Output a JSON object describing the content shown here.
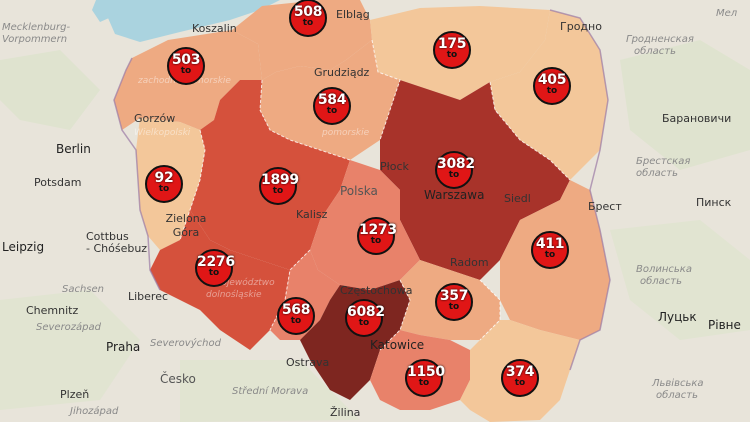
{
  "map": {
    "colors": {
      "background": "#e8e4da",
      "sea": "#aad3df",
      "low": "#f3c79a",
      "mid_low": "#eeaa82",
      "mid": "#e8826a",
      "high": "#d5513c",
      "very_high": "#a8332a",
      "highest": "#7e2620",
      "marker": "#e01616"
    },
    "markers": [
      {
        "id": "zachodniopomorskie",
        "value": "503",
        "sym": "to"
      },
      {
        "id": "pomorskie",
        "value": "508",
        "sym": "to"
      },
      {
        "id": "warminsko-mazurskie",
        "value": "175",
        "sym": "to"
      },
      {
        "id": "podlaskie",
        "value": "405",
        "sym": "to"
      },
      {
        "id": "kujawsko-pomorskie",
        "value": "584",
        "sym": "to"
      },
      {
        "id": "lubuskie",
        "value": "92",
        "sym": "to"
      },
      {
        "id": "wielkopolskie",
        "value": "1899",
        "sym": "to"
      },
      {
        "id": "mazowieckie",
        "value": "3082",
        "sym": "to"
      },
      {
        "id": "lodzkie",
        "value": "1273",
        "sym": "to"
      },
      {
        "id": "dolnoslaskie",
        "value": "2276",
        "sym": "to"
      },
      {
        "id": "lubelskie",
        "value": "411",
        "sym": "to"
      },
      {
        "id": "opolskie",
        "value": "568",
        "sym": "to"
      },
      {
        "id": "slaskie",
        "value": "6082",
        "sym": "to"
      },
      {
        "id": "swietokrzyskie",
        "value": "357",
        "sym": "to"
      },
      {
        "id": "malopolskie",
        "value": "1150",
        "sym": "to"
      },
      {
        "id": "podkarpackie",
        "value": "374",
        "sym": "to"
      }
    ],
    "cities": {
      "berlin": "Berlin",
      "potsdam": "Potsdam",
      "leipzig": "Leipzig",
      "chemnitz": "Chemnitz",
      "cottbus": "Cottbus",
      "chosebuz": "- Chóśebuz",
      "praha": "Praha",
      "plzen": "Plzeň",
      "ostrava": "Ostrava",
      "zilina": "Žilina",
      "koszalin": "Koszalin",
      "elblag": "Elbląg",
      "grudziadz": "Grudziądz",
      "gorzow": "Gorzów",
      "zielona_gora": "Zielona Góra",
      "kalisz": "Kalisz",
      "plock": "Płock",
      "warszawa": "Warszawa",
      "siedlce": "Siedl",
      "radom": "Radom",
      "katowice": "Katowice",
      "czestochowa": "Częstochowa",
      "liberec": "Liberec",
      "brest": "Брест",
      "pinsk": "Пинск",
      "baranovichi": "Барановичи",
      "lutsk": "Луцьк",
      "rivne": "Рівне",
      "polska": "Polska"
    },
    "regions_foreign": {
      "mecklenburg": "Mecklenburg-",
      "vorpommern": "Vorpommern",
      "sachsen": "Sachsen",
      "severozapad": "Severozápad",
      "severovychod": "Severovýchod",
      "cesko": "Česko",
      "stredni_morava": "Střední Morava",
      "jihozapad": "Jihozápad",
      "grodno": "Гродно",
      "grodno_obl1": "Гродненская",
      "grodno_obl2": "область",
      "brest_obl1": "Брестская",
      "brest_obl2": "область",
      "volyn_obl1": "Волинська",
      "volyn_obl2": "область",
      "lviv_obl1": "Львівська",
      "lviv_obl2": "область",
      "mel": "Мел"
    },
    "ghost_labels": {
      "wielkopolski": "Wielkopolski",
      "zachodnio": "zachodniopomorskie",
      "pomorskie": "pomorskie",
      "dolnoslaskie": "dolnośląskie",
      "wojewodztwo": "województwo"
    }
  }
}
